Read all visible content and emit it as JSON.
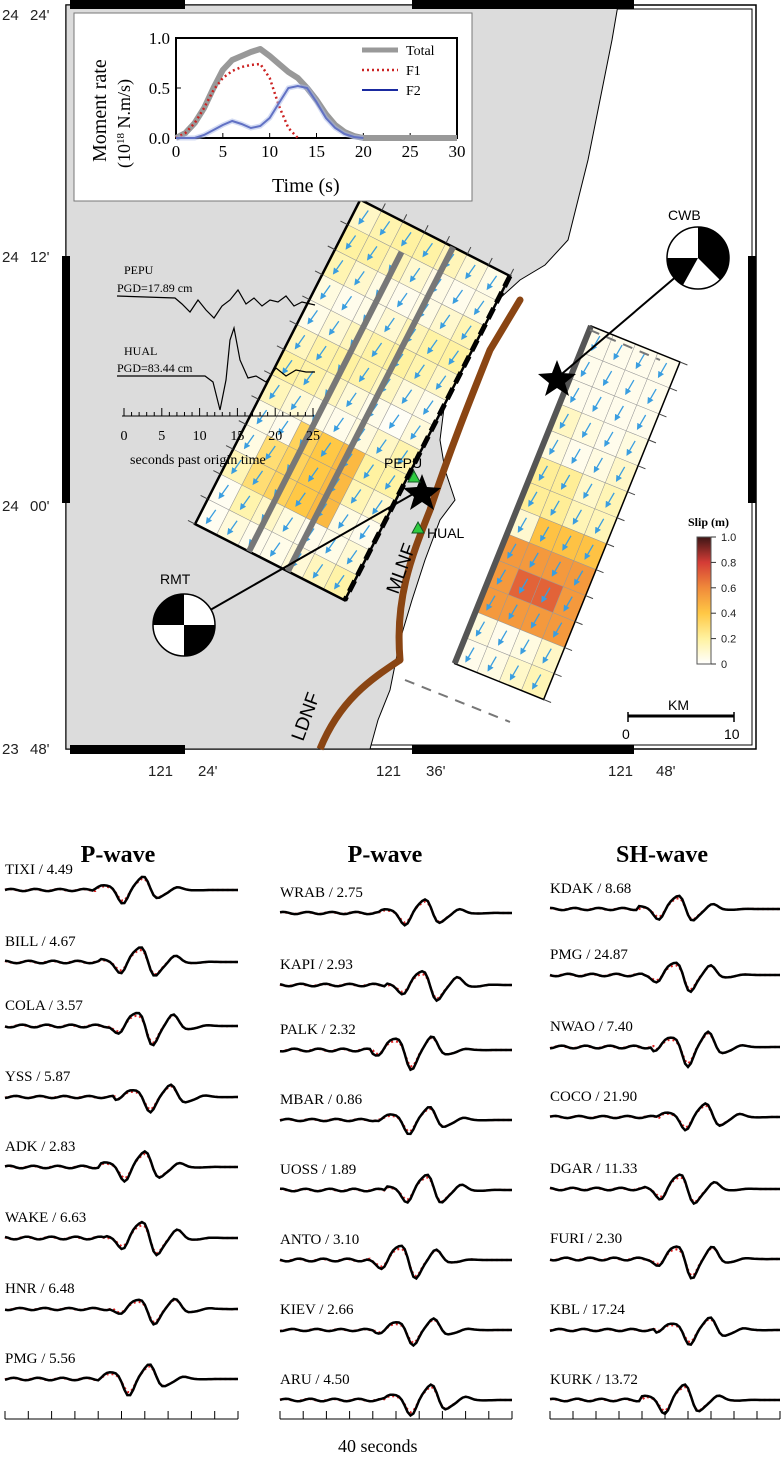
{
  "map": {
    "lat_labels": [
      {
        "deg": "24",
        "min": "24'"
      },
      {
        "deg": "24",
        "min": "12'"
      },
      {
        "deg": "24",
        "min": "00'"
      },
      {
        "deg": "23",
        "min": "48'"
      }
    ],
    "lon_labels": [
      {
        "deg": "121",
        "min": "24'"
      },
      {
        "deg": "121",
        "min": "36'"
      },
      {
        "deg": "121",
        "min": "48'"
      }
    ],
    "fault_labels": {
      "mlnf": "MLNF",
      "ldnf": "LDNF"
    },
    "stations": [
      {
        "name": "PEPU",
        "color": "#2ecc40"
      },
      {
        "name": "HUAL",
        "color": "#2ecc40"
      }
    ],
    "mechanisms": [
      {
        "label": "CWB"
      },
      {
        "label": "RMT"
      }
    ],
    "colorbar": {
      "title": "Slip (m)",
      "ticks": [
        "1.0",
        "0.8",
        "0.6",
        "0.4",
        "0.2",
        "0"
      ],
      "colors": [
        "#fffff2",
        "#fff0a0",
        "#ffd24d",
        "#f39a3a",
        "#d6443a",
        "#4a1a1a"
      ]
    },
    "scale": {
      "title": "KM",
      "ticks": [
        "0",
        "10"
      ]
    }
  },
  "moment_rate": {
    "ylabel_line1": "Moment rate",
    "ylabel_line2": "(10",
    "ylabel_exp": "18",
    "ylabel_tail": " N.m/s)",
    "xlabel": "Time (s)",
    "chart_data": {
      "type": "line",
      "xlim": [
        0,
        30
      ],
      "ylim": [
        0,
        1.0
      ],
      "xticks": [
        "0",
        "5",
        "10",
        "15",
        "20",
        "25",
        "30"
      ],
      "yticks": [
        "0.0",
        "0.5",
        "1.0"
      ],
      "legend_placement": "top-right",
      "series": [
        {
          "name": "Total",
          "color": "#999999",
          "style": "solid-thick",
          "x": [
            0,
            1,
            2,
            3,
            4,
            5,
            6,
            7,
            8,
            9,
            10,
            11,
            12,
            13,
            14,
            15,
            16,
            17,
            18,
            19,
            20,
            30
          ],
          "y": [
            0,
            0.05,
            0.15,
            0.3,
            0.5,
            0.68,
            0.78,
            0.82,
            0.86,
            0.89,
            0.82,
            0.74,
            0.66,
            0.6,
            0.5,
            0.38,
            0.24,
            0.13,
            0.06,
            0.02,
            0,
            0
          ]
        },
        {
          "name": "F1",
          "color": "#cc2222",
          "style": "dotted",
          "x": [
            0,
            1,
            2,
            3,
            4,
            5,
            6,
            7,
            8,
            9,
            10,
            11,
            12,
            13
          ],
          "y": [
            0,
            0.05,
            0.15,
            0.3,
            0.48,
            0.6,
            0.67,
            0.71,
            0.73,
            0.74,
            0.6,
            0.32,
            0.1,
            0
          ]
        },
        {
          "name": "F2",
          "color": "#1a2aa0",
          "style": "solid",
          "x": [
            0,
            2,
            3,
            4,
            5,
            6,
            7,
            8,
            9,
            10,
            11,
            12,
            13,
            14,
            15,
            16,
            17,
            18,
            19,
            20
          ],
          "y": [
            0,
            0,
            0.03,
            0.08,
            0.13,
            0.17,
            0.14,
            0.1,
            0.12,
            0.2,
            0.35,
            0.5,
            0.52,
            0.5,
            0.36,
            0.2,
            0.1,
            0.04,
            0.01,
            0
          ]
        }
      ]
    }
  },
  "gps": {
    "traces": [
      {
        "station": "PEPU",
        "pgd": "PGD=17.89 cm"
      },
      {
        "station": "HUAL",
        "pgd": "PGD=83.44 cm"
      }
    ],
    "axis_ticks": [
      "0",
      "5",
      "10",
      "15",
      "20",
      "25"
    ],
    "axis_label": "seconds past origin time"
  },
  "waveforms": {
    "columns": [
      {
        "title": "P-wave",
        "stations": [
          "TIXI / 4.49",
          "BILL / 4.67",
          "COLA / 3.57",
          "YSS / 5.87",
          "ADK / 2.83",
          "WAKE / 6.63",
          "HNR / 6.48",
          "PMG / 5.56"
        ]
      },
      {
        "title": "P-wave",
        "stations": [
          "WRAB / 2.75",
          "KAPI / 2.93",
          "PALK / 2.32",
          "MBAR / 0.86",
          "UOSS / 1.89",
          "ANTO / 3.10",
          "KIEV / 2.66",
          "ARU / 4.50"
        ]
      },
      {
        "title": "SH-wave",
        "stations": [
          "KDAK / 8.68",
          "PMG / 24.87",
          "NWAO / 7.40",
          "COCO / 21.90",
          "DGAR / 11.33",
          "FURI / 2.30",
          "KBL / 17.24",
          "KURK / 13.72"
        ]
      }
    ],
    "time_label": "40 seconds"
  }
}
